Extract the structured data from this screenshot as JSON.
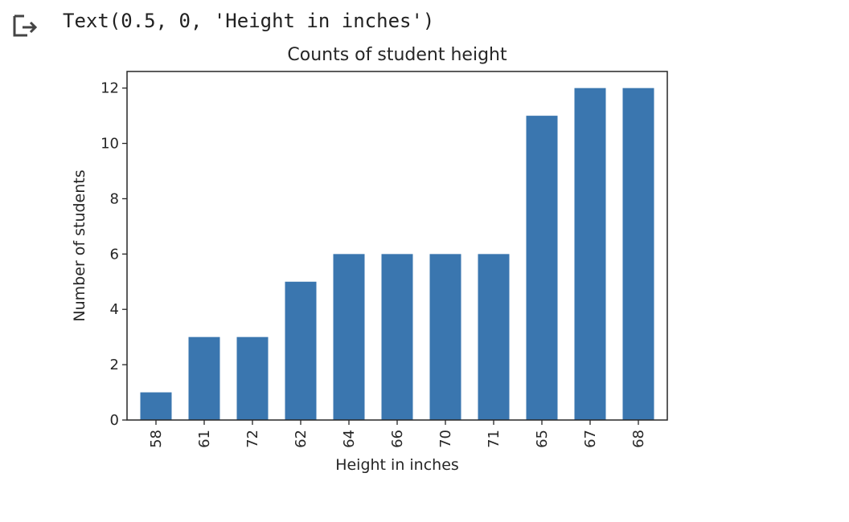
{
  "cell_output": {
    "icon": "output-arrow-icon",
    "text": "Text(0.5, 0, 'Height in inches')"
  },
  "chart_data": {
    "type": "bar",
    "title": "Counts of student height",
    "xlabel": "Height in inches",
    "ylabel": "Number of students",
    "categories": [
      "58",
      "61",
      "72",
      "62",
      "64",
      "66",
      "70",
      "71",
      "65",
      "67",
      "68"
    ],
    "values": [
      1,
      3,
      3,
      5,
      6,
      6,
      6,
      6,
      11,
      12,
      12
    ],
    "ylim": [
      0,
      12.6
    ],
    "yticks": [
      "0",
      "2",
      "4",
      "6",
      "8",
      "10",
      "12"
    ],
    "bar_color": "#3a76af",
    "grid": false,
    "legend": "none"
  }
}
